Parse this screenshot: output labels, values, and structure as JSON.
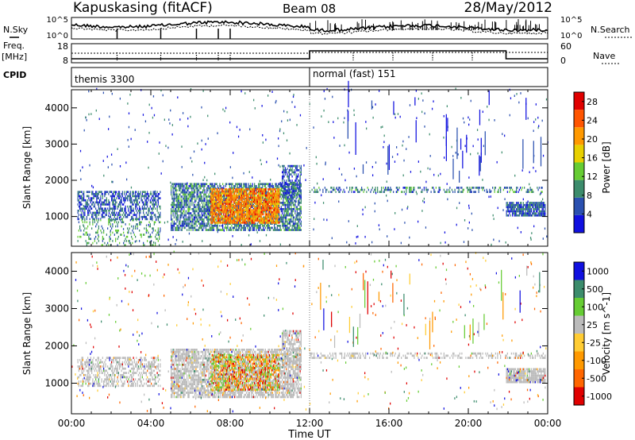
{
  "header": {
    "station": "Kapuskasing (fitACF)",
    "beam": "Beam 08",
    "date": "28/May/2012"
  },
  "left_labels": {
    "nsky": "N.Sky",
    "freq": "Freq.",
    "freq_unit": "[MHz]",
    "cpid": "CPID"
  },
  "right_labels": {
    "nsearch": "N.Search",
    "nave": "Nave"
  },
  "noise_panel": {
    "left_ticks": [
      "10^5",
      "10^0"
    ],
    "right_ticks": [
      "10^5",
      "10^0"
    ]
  },
  "freq_panel": {
    "left_ticks": [
      "18",
      "8"
    ],
    "right_ticks": [
      "60",
      "0"
    ]
  },
  "cpid_panel": {
    "mode1": "themis 3300",
    "mode2": "normal (fast) 151"
  },
  "time_axis": {
    "label": "Time UT",
    "ticks": [
      "00:00",
      "04:00",
      "08:00",
      "12:00",
      "16:00",
      "20:00",
      "00:00"
    ]
  },
  "colors": {
    "power": [
      "#1010e0",
      "#2a50b0",
      "#3c8c6c",
      "#66cc33",
      "#e8d000",
      "#ff9900",
      "#ff5500",
      "#e00000"
    ],
    "velocity": [
      "#e00000",
      "#ff6600",
      "#ff9900",
      "#ffcc33",
      "#bbbbbb",
      "#66cc33",
      "#3c8c6c",
      "#1010e0"
    ],
    "ground_scatter": "#bbbbbb"
  },
  "chart_data": [
    {
      "type": "heatmap",
      "title": "",
      "ylabel": "Slant Range [km]",
      "xlabel": "",
      "ylim": [
        180,
        4500
      ],
      "xlim": [
        0,
        24
      ],
      "yticks": [
        "1000",
        "2000",
        "3000",
        "4000"
      ],
      "colorbar": {
        "label": "Power [dB]",
        "ticks": [
          "4",
          "8",
          "12",
          "16",
          "20",
          "24",
          "28"
        ],
        "range": [
          0,
          30
        ]
      },
      "regions": [
        {
          "t": [
            0.3,
            4.5
          ],
          "r": [
            900,
            1700
          ],
          "level": 6,
          "density": 0.55
        },
        {
          "t": [
            0.3,
            4.5
          ],
          "r": [
            180,
            900
          ],
          "level": 10,
          "density": 0.2
        },
        {
          "t": [
            5.0,
            11.6
          ],
          "r": [
            600,
            1900
          ],
          "level": 8,
          "density": 0.7
        },
        {
          "t": [
            7.0,
            10.5
          ],
          "r": [
            800,
            1800
          ],
          "level": 22,
          "density": 0.85
        },
        {
          "t": [
            10.6,
            11.6
          ],
          "r": [
            1500,
            2400
          ],
          "level": 6,
          "density": 0.6
        },
        {
          "t": [
            12.0,
            23.9
          ],
          "r": [
            1650,
            1850
          ],
          "level": 8,
          "density": 0.4
        },
        {
          "t": [
            21.9,
            23.9
          ],
          "r": [
            1000,
            1400
          ],
          "level": 6,
          "density": 0.85
        }
      ]
    },
    {
      "type": "heatmap",
      "title": "",
      "ylabel": "Slant Range [km]",
      "xlabel": "Time UT",
      "ylim": [
        180,
        4500
      ],
      "xlim": [
        0,
        24
      ],
      "yticks": [
        "1000",
        "2000",
        "3000",
        "4000"
      ],
      "colorbar": {
        "label": "Velocity [m s^-1]",
        "ticks": [
          "1000",
          "500",
          "100",
          "25",
          "-25",
          "-100",
          "-500",
          "-1000"
        ]
      },
      "regions": [
        {
          "t": [
            0.3,
            4.5
          ],
          "r": [
            900,
            1700
          ],
          "level": 0,
          "density": 0.45
        },
        {
          "t": [
            5.0,
            11.6
          ],
          "r": [
            600,
            1900
          ],
          "level": 0,
          "density": 0.7
        },
        {
          "t": [
            7.0,
            10.5
          ],
          "r": [
            800,
            1800
          ],
          "level": 60,
          "density": 0.6
        },
        {
          "t": [
            10.6,
            11.6
          ],
          "r": [
            1500,
            2400
          ],
          "level": 0,
          "density": 0.6
        },
        {
          "t": [
            12.0,
            23.9
          ],
          "r": [
            1650,
            1850
          ],
          "level": 0,
          "density": 0.4
        },
        {
          "t": [
            21.9,
            23.9
          ],
          "r": [
            1000,
            1400
          ],
          "level": 0,
          "density": 0.85
        }
      ]
    }
  ]
}
